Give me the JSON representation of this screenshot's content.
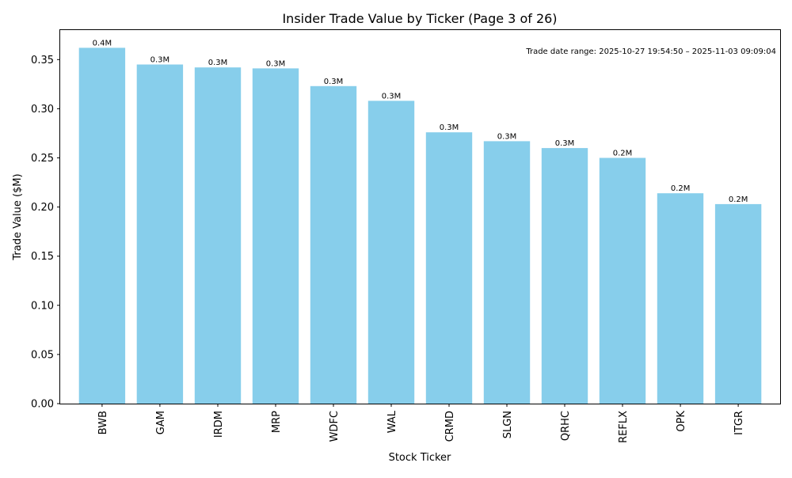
{
  "chart_data": {
    "type": "bar",
    "title": "Insider Trade Value by Ticker (Page 3 of 26)",
    "xlabel": "Stock Ticker",
    "ylabel": "Trade Value ($M)",
    "ylim": [
      0,
      0.38
    ],
    "yticks": [
      0,
      0.05,
      0.1,
      0.15,
      0.2,
      0.25,
      0.3,
      0.35
    ],
    "ytick_labels": [
      "0.00",
      "0.05",
      "0.10",
      "0.15",
      "0.20",
      "0.25",
      "0.30",
      "0.35"
    ],
    "categories": [
      "BWB",
      "GAM",
      "IRDM",
      "MRP",
      "WDFC",
      "WAL",
      "CRMD",
      "SLGN",
      "QRHC",
      "REFLX",
      "OPK",
      "ITGR"
    ],
    "values": [
      0.362,
      0.345,
      0.342,
      0.341,
      0.323,
      0.308,
      0.276,
      0.267,
      0.26,
      0.25,
      0.214,
      0.203
    ],
    "data_labels": [
      "0.4M",
      "0.3M",
      "0.3M",
      "0.3M",
      "0.3M",
      "0.3M",
      "0.3M",
      "0.3M",
      "0.3M",
      "0.2M",
      "0.2M",
      "0.2M"
    ],
    "bar_color": "#87CEEB",
    "annotation": "Trade date range: 2025-10-27 19:54:50 – 2025-11-03 09:09:04",
    "grid": false,
    "legend": "none"
  }
}
